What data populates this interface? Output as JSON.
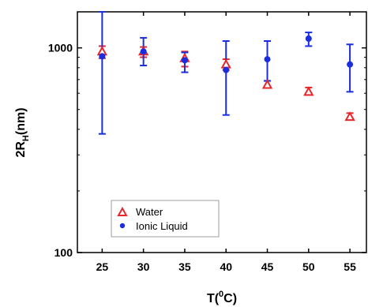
{
  "chart_data": {
    "type": "scatter",
    "title": "",
    "xlabel": {
      "main": "T(",
      "sup": "0",
      "end": "C)"
    },
    "ylabel": {
      "main": "2R",
      "sub": "H",
      "end": "(nm)"
    },
    "x": [
      25,
      30,
      35,
      40,
      45,
      50,
      55
    ],
    "x_ticks": [
      "25",
      "30",
      "35",
      "40",
      "45",
      "50",
      "55"
    ],
    "xlim": [
      22,
      57
    ],
    "ylim": [
      100,
      1500
    ],
    "y_scale": "log",
    "y_ticks": [
      {
        "value": 100,
        "label": "100"
      },
      {
        "value": 1000,
        "label": "1000"
      }
    ],
    "grid": false,
    "legend_position": "bottom-left",
    "series": [
      {
        "name": "Water",
        "marker": "open-triangle",
        "color": "#e8262a",
        "y": [
          960,
          960,
          890,
          830,
          660,
          610,
          460
        ],
        "err_low": [
          890,
          900,
          810,
          780,
          640,
          590,
          445
        ],
        "err_high": [
          1020,
          1010,
          960,
          880,
          690,
          640,
          480
        ]
      },
      {
        "name": "Ionic Liquid",
        "marker": "filled-circle",
        "color": "#1a2ee0",
        "y": [
          910,
          960,
          870,
          780,
          880,
          1110,
          830
        ],
        "err_low": [
          380,
          820,
          760,
          470,
          690,
          1020,
          610
        ],
        "err_high": [
          1500,
          1120,
          950,
          1080,
          1080,
          1190,
          1040
        ]
      }
    ]
  }
}
